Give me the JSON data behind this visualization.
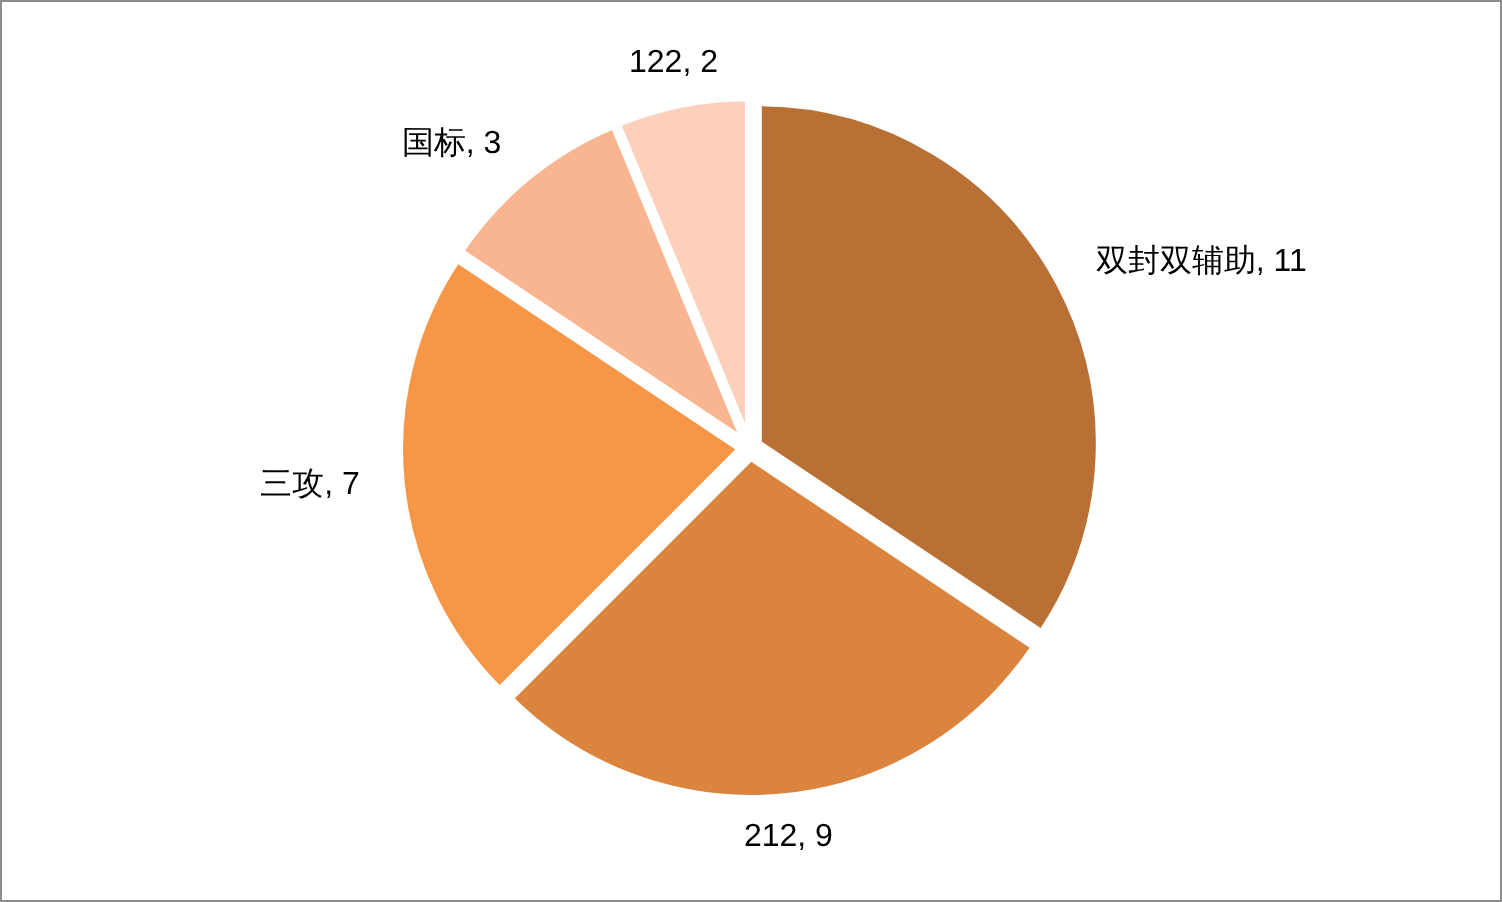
{
  "chart_data": {
    "type": "pie",
    "categories": [
      "双封双辅助",
      "212",
      "三攻",
      "国标",
      "122"
    ],
    "values": [
      11,
      9,
      7,
      3,
      2
    ],
    "colors": [
      "#b87035",
      "#db843d",
      "#f79646",
      "#f9b590",
      "#fcd0ba"
    ],
    "value_labels": [
      ", 11",
      ", 9",
      ", 7",
      ", 3",
      ", 2"
    ]
  }
}
